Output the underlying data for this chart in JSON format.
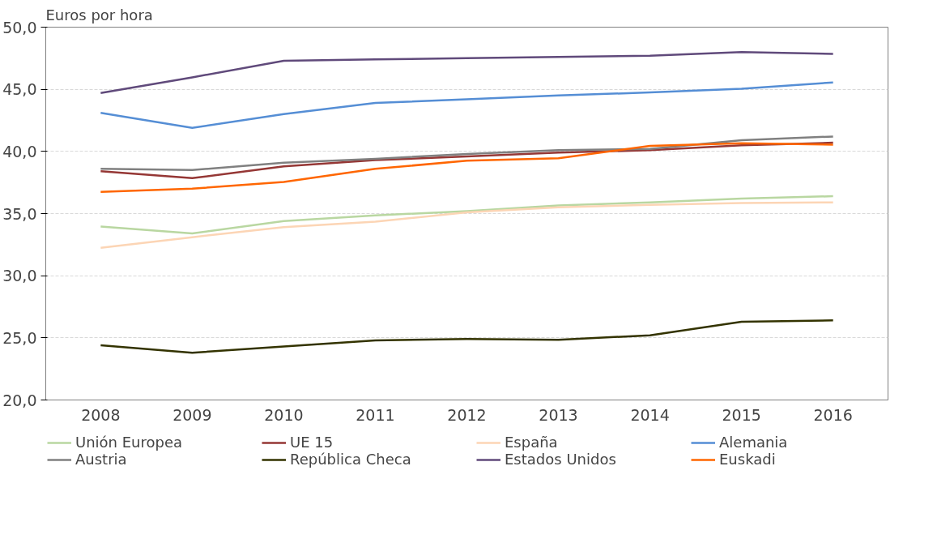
{
  "chart_data": {
    "type": "line",
    "ylabel": "Euros por hora",
    "categories": [
      "2008",
      "2009",
      "2010",
      "2011",
      "2012",
      "2013",
      "2014",
      "2015",
      "2016"
    ],
    "ylim": [
      20,
      50
    ],
    "yticks": [
      {
        "value": 20,
        "label": "20,0"
      },
      {
        "value": 25,
        "label": "25,0"
      },
      {
        "value": 30,
        "label": "30,0"
      },
      {
        "value": 35,
        "label": "35,0"
      },
      {
        "value": 40,
        "label": "40,0"
      },
      {
        "value": 45,
        "label": "45,0"
      },
      {
        "value": 50,
        "label": "50,0"
      }
    ],
    "grid": "y",
    "legend": "bottom",
    "marker": "none",
    "line_style": "solid",
    "series": [
      {
        "name": "Unión Europea",
        "color": "#b9d7a1",
        "values": [
          33.95,
          33.4,
          34.4,
          34.85,
          35.2,
          35.65,
          35.9,
          36.2,
          36.4
        ]
      },
      {
        "name": "UE 15",
        "color": "#953735",
        "values": [
          38.4,
          37.85,
          38.8,
          39.3,
          39.6,
          39.9,
          40.1,
          40.5,
          40.7
        ]
      },
      {
        "name": "España",
        "color": "#fcd5b5",
        "values": [
          32.25,
          33.1,
          33.9,
          34.35,
          35.1,
          35.5,
          35.7,
          35.85,
          35.9
        ]
      },
      {
        "name": "Alemania",
        "color": "#558ed5",
        "values": [
          43.1,
          41.9,
          43.0,
          43.9,
          44.2,
          44.5,
          44.75,
          45.05,
          45.55
        ]
      },
      {
        "name": "Austria",
        "color": "#808080",
        "values": [
          38.6,
          38.5,
          39.1,
          39.4,
          39.8,
          40.1,
          40.2,
          40.9,
          41.2
        ]
      },
      {
        "name": "República Checa",
        "color": "#333300",
        "values": [
          24.4,
          23.8,
          24.3,
          24.8,
          24.9,
          24.85,
          25.2,
          26.3,
          26.4
        ]
      },
      {
        "name": "Estados Unidos",
        "color": "#604a7b",
        "values": [
          44.7,
          45.96,
          47.3,
          47.4,
          47.5,
          47.6,
          47.7,
          48.0,
          47.85
        ]
      },
      {
        "name": "Euskadi",
        "color": "#ff6600",
        "values": [
          36.75,
          37.0,
          37.55,
          38.6,
          39.25,
          39.45,
          40.45,
          40.65,
          40.55
        ]
      }
    ]
  }
}
